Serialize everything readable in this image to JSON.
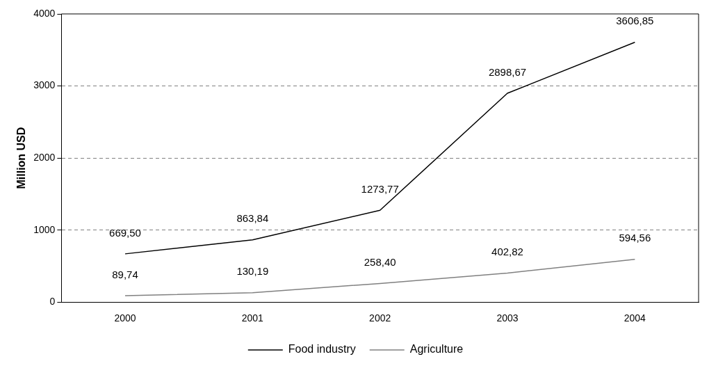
{
  "chart_data": {
    "type": "line",
    "ylabel": "Million USD",
    "categories": [
      "2000",
      "2001",
      "2002",
      "2003",
      "2004"
    ],
    "series": [
      {
        "name": "Food industry",
        "color": "#000000",
        "values": [
          669.5,
          863.84,
          1273.77,
          2898.67,
          3606.85
        ],
        "value_labels": [
          "669,50",
          "863,84",
          "1273,77",
          "2898,67",
          "3606,85"
        ]
      },
      {
        "name": "Agriculture",
        "color": "#808080",
        "values": [
          89.74,
          130.19,
          258.4,
          402.82,
          594.56
        ],
        "value_labels": [
          "89,74",
          "130,19",
          "258,40",
          "402,82",
          "594,56"
        ]
      }
    ],
    "ylim": [
      0,
      4000
    ],
    "yticks": [
      0,
      1000,
      2000,
      3000,
      4000
    ],
    "grid": "y",
    "legend": "bottom",
    "marker": "none",
    "line_style": "solid"
  }
}
